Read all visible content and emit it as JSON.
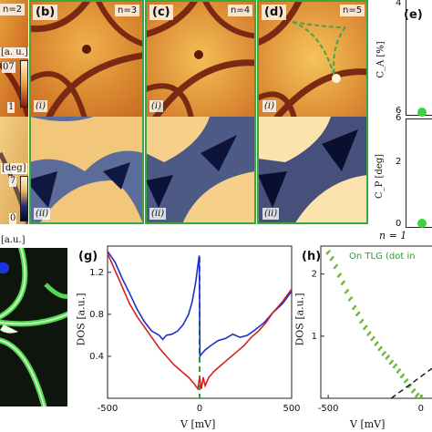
{
  "panels_top": {
    "a": {
      "n_label": "n=2",
      "cb_unit": "[a. u.]",
      "cb_max": "07",
      "cb_min": "1",
      "cb_unit2": "[deg]",
      "cb_max2": "7",
      "cb_min2": "0"
    },
    "b": {
      "tag": "(b)",
      "n_label": "n=3",
      "sub_i": "(i)",
      "sub_ii": "(ii)"
    },
    "c": {
      "tag": "(c)",
      "n_label": "n=4",
      "sub_i": "(i)",
      "sub_ii": "(ii)"
    },
    "d": {
      "tag": "(d)",
      "n_label": "n=5",
      "sub_i": "(i)",
      "sub_ii": "(ii)"
    },
    "e": {
      "tag": "(e)",
      "ylabel_top": "C_A [%]",
      "ylabel_bottom": "C_P [deg]",
      "ytick_4": "4",
      "ytick_6": "6",
      "ytick_0": "0",
      "ytick_2": "2",
      "ytick_6b": "6",
      "n_text": "n = 1"
    }
  },
  "panel_f": {
    "cb_unit": "[a.u.]"
  },
  "colors": {
    "red": "#d62020",
    "blue": "#1a2fcf",
    "green": "#2e9e2e",
    "green_points": "#6fb83a",
    "frame": "#3aa83a"
  },
  "chart_data": [
    {
      "type": "line",
      "panel": "(g)",
      "xlabel": "V [mV]",
      "ylabel": "DOS [a.u.]",
      "xlim": [
        -500,
        500
      ],
      "ylim": [
        0,
        1.45
      ],
      "xticks": [
        "-500",
        "0",
        "500"
      ],
      "yticks": [
        "0.4",
        "0.8",
        "1.2"
      ],
      "annotation": "dashed vertical line at V = 0",
      "series": [
        {
          "color": "#1a2fcf",
          "x": [
            -500,
            -460,
            -420,
            -380,
            -340,
            -300,
            -260,
            -220,
            -200,
            -180,
            -150,
            -120,
            -90,
            -60,
            -40,
            -20,
            -10,
            -2,
            2,
            10,
            30,
            60,
            100,
            140,
            180,
            220,
            260,
            300,
            350,
            400,
            450,
            500
          ],
          "y": [
            1.4,
            1.3,
            1.14,
            1.0,
            0.85,
            0.73,
            0.64,
            0.6,
            0.56,
            0.6,
            0.61,
            0.64,
            0.7,
            0.8,
            0.92,
            1.12,
            1.26,
            1.36,
            0.4,
            0.42,
            0.46,
            0.5,
            0.55,
            0.57,
            0.61,
            0.58,
            0.6,
            0.65,
            0.72,
            0.82,
            0.9,
            1.02
          ]
        },
        {
          "color": "#d62020",
          "x": [
            -500,
            -460,
            -420,
            -380,
            -340,
            -300,
            -260,
            -220,
            -180,
            -140,
            -100,
            -60,
            -30,
            -10,
            0,
            10,
            20,
            30,
            50,
            80,
            120,
            160,
            200,
            240,
            280,
            320,
            360,
            400,
            450,
            500
          ],
          "y": [
            1.38,
            1.22,
            1.06,
            0.9,
            0.78,
            0.68,
            0.58,
            0.48,
            0.4,
            0.32,
            0.26,
            0.2,
            0.14,
            0.09,
            0.2,
            0.09,
            0.2,
            0.12,
            0.2,
            0.26,
            0.32,
            0.38,
            0.44,
            0.5,
            0.58,
            0.64,
            0.72,
            0.82,
            0.92,
            1.04
          ]
        }
      ]
    },
    {
      "type": "scatter",
      "panel": "(h)",
      "xlabel": "V [mV]",
      "ylabel": "DOS [a.u.]",
      "xlim": [
        -540,
        60
      ],
      "ylim": [
        0,
        2.45
      ],
      "xticks": [
        "-500",
        "0"
      ],
      "yticks": [
        "1",
        "2"
      ],
      "legend": "On TLG (dot in",
      "series": [
        {
          "color": "#6fb83a",
          "x": [
            -500,
            -480,
            -460,
            -440,
            -420,
            -400,
            -380,
            -360,
            -340,
            -320,
            -300,
            -280,
            -260,
            -240,
            -220,
            -200,
            -180,
            -160,
            -140,
            -120,
            -100,
            -80,
            -60,
            -40,
            -20,
            0
          ],
          "y": [
            2.35,
            2.25,
            2.12,
            1.98,
            1.86,
            1.72,
            1.6,
            1.46,
            1.36,
            1.24,
            1.14,
            1.04,
            0.96,
            0.88,
            0.8,
            0.72,
            0.66,
            0.58,
            0.52,
            0.44,
            0.36,
            0.28,
            0.2,
            0.12,
            0.05,
            0.02
          ]
        },
        {
          "color": "#111111",
          "style": "dashed",
          "x": [
            -160,
            60
          ],
          "y": [
            0.0,
            0.48
          ]
        }
      ]
    }
  ]
}
